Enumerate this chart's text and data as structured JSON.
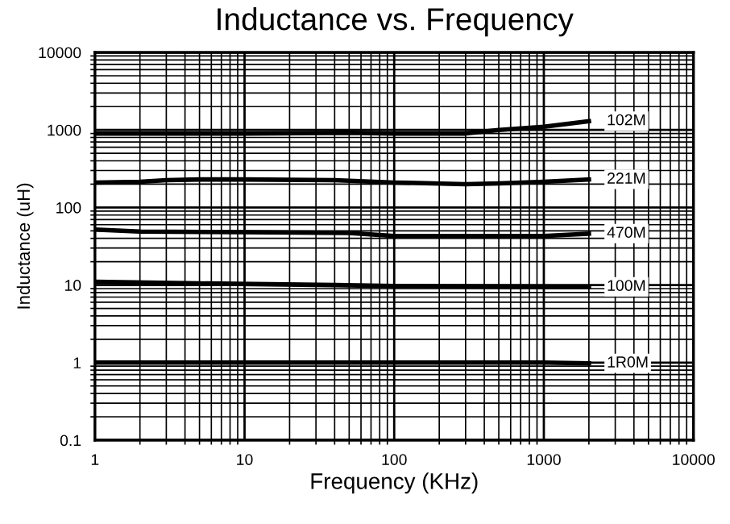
{
  "chart_data": {
    "type": "line",
    "title": "Inductance vs. Frequency",
    "xlabel": "Frequency (KHz)",
    "ylabel": "Inductance (uH)",
    "log": "xy",
    "xlim": [
      1,
      10000
    ],
    "ylim": [
      0.1,
      10000
    ],
    "xticks": [
      1,
      10,
      100,
      1000,
      10000
    ],
    "yticks": [
      0.1,
      1,
      10,
      100,
      1000,
      10000
    ],
    "grid": true,
    "marker": "none",
    "line_style": "solid",
    "series": [
      {
        "name": "102M",
        "color": "#000000",
        "x": [
          1,
          10,
          50,
          100,
          300,
          500,
          1000,
          2000
        ],
        "values": [
          900,
          900,
          920,
          900,
          900,
          1000,
          1100,
          1300
        ]
      },
      {
        "name": "221M",
        "color": "#000000",
        "x": [
          1,
          2,
          3,
          5,
          10,
          40,
          100,
          300,
          500,
          1000,
          2000
        ],
        "values": [
          210,
          215,
          225,
          230,
          230,
          225,
          210,
          200,
          205,
          215,
          230
        ]
      },
      {
        "name": "470M",
        "color": "#000000",
        "x": [
          1,
          2,
          10,
          50,
          100,
          300,
          1000,
          2000
        ],
        "values": [
          52,
          49,
          48,
          47,
          43,
          43,
          43,
          46
        ]
      },
      {
        "name": "100M",
        "color": "#000000",
        "x": [
          1,
          5,
          40,
          100,
          1000,
          2000
        ],
        "values": [
          11,
          10.5,
          10,
          9.7,
          9.5,
          9.5
        ]
      },
      {
        "name": "1R0M",
        "color": "#000000",
        "x": [
          1,
          10,
          100,
          1000,
          2000
        ],
        "values": [
          1.0,
          1.0,
          1.0,
          1.0,
          0.98
        ]
      }
    ]
  }
}
